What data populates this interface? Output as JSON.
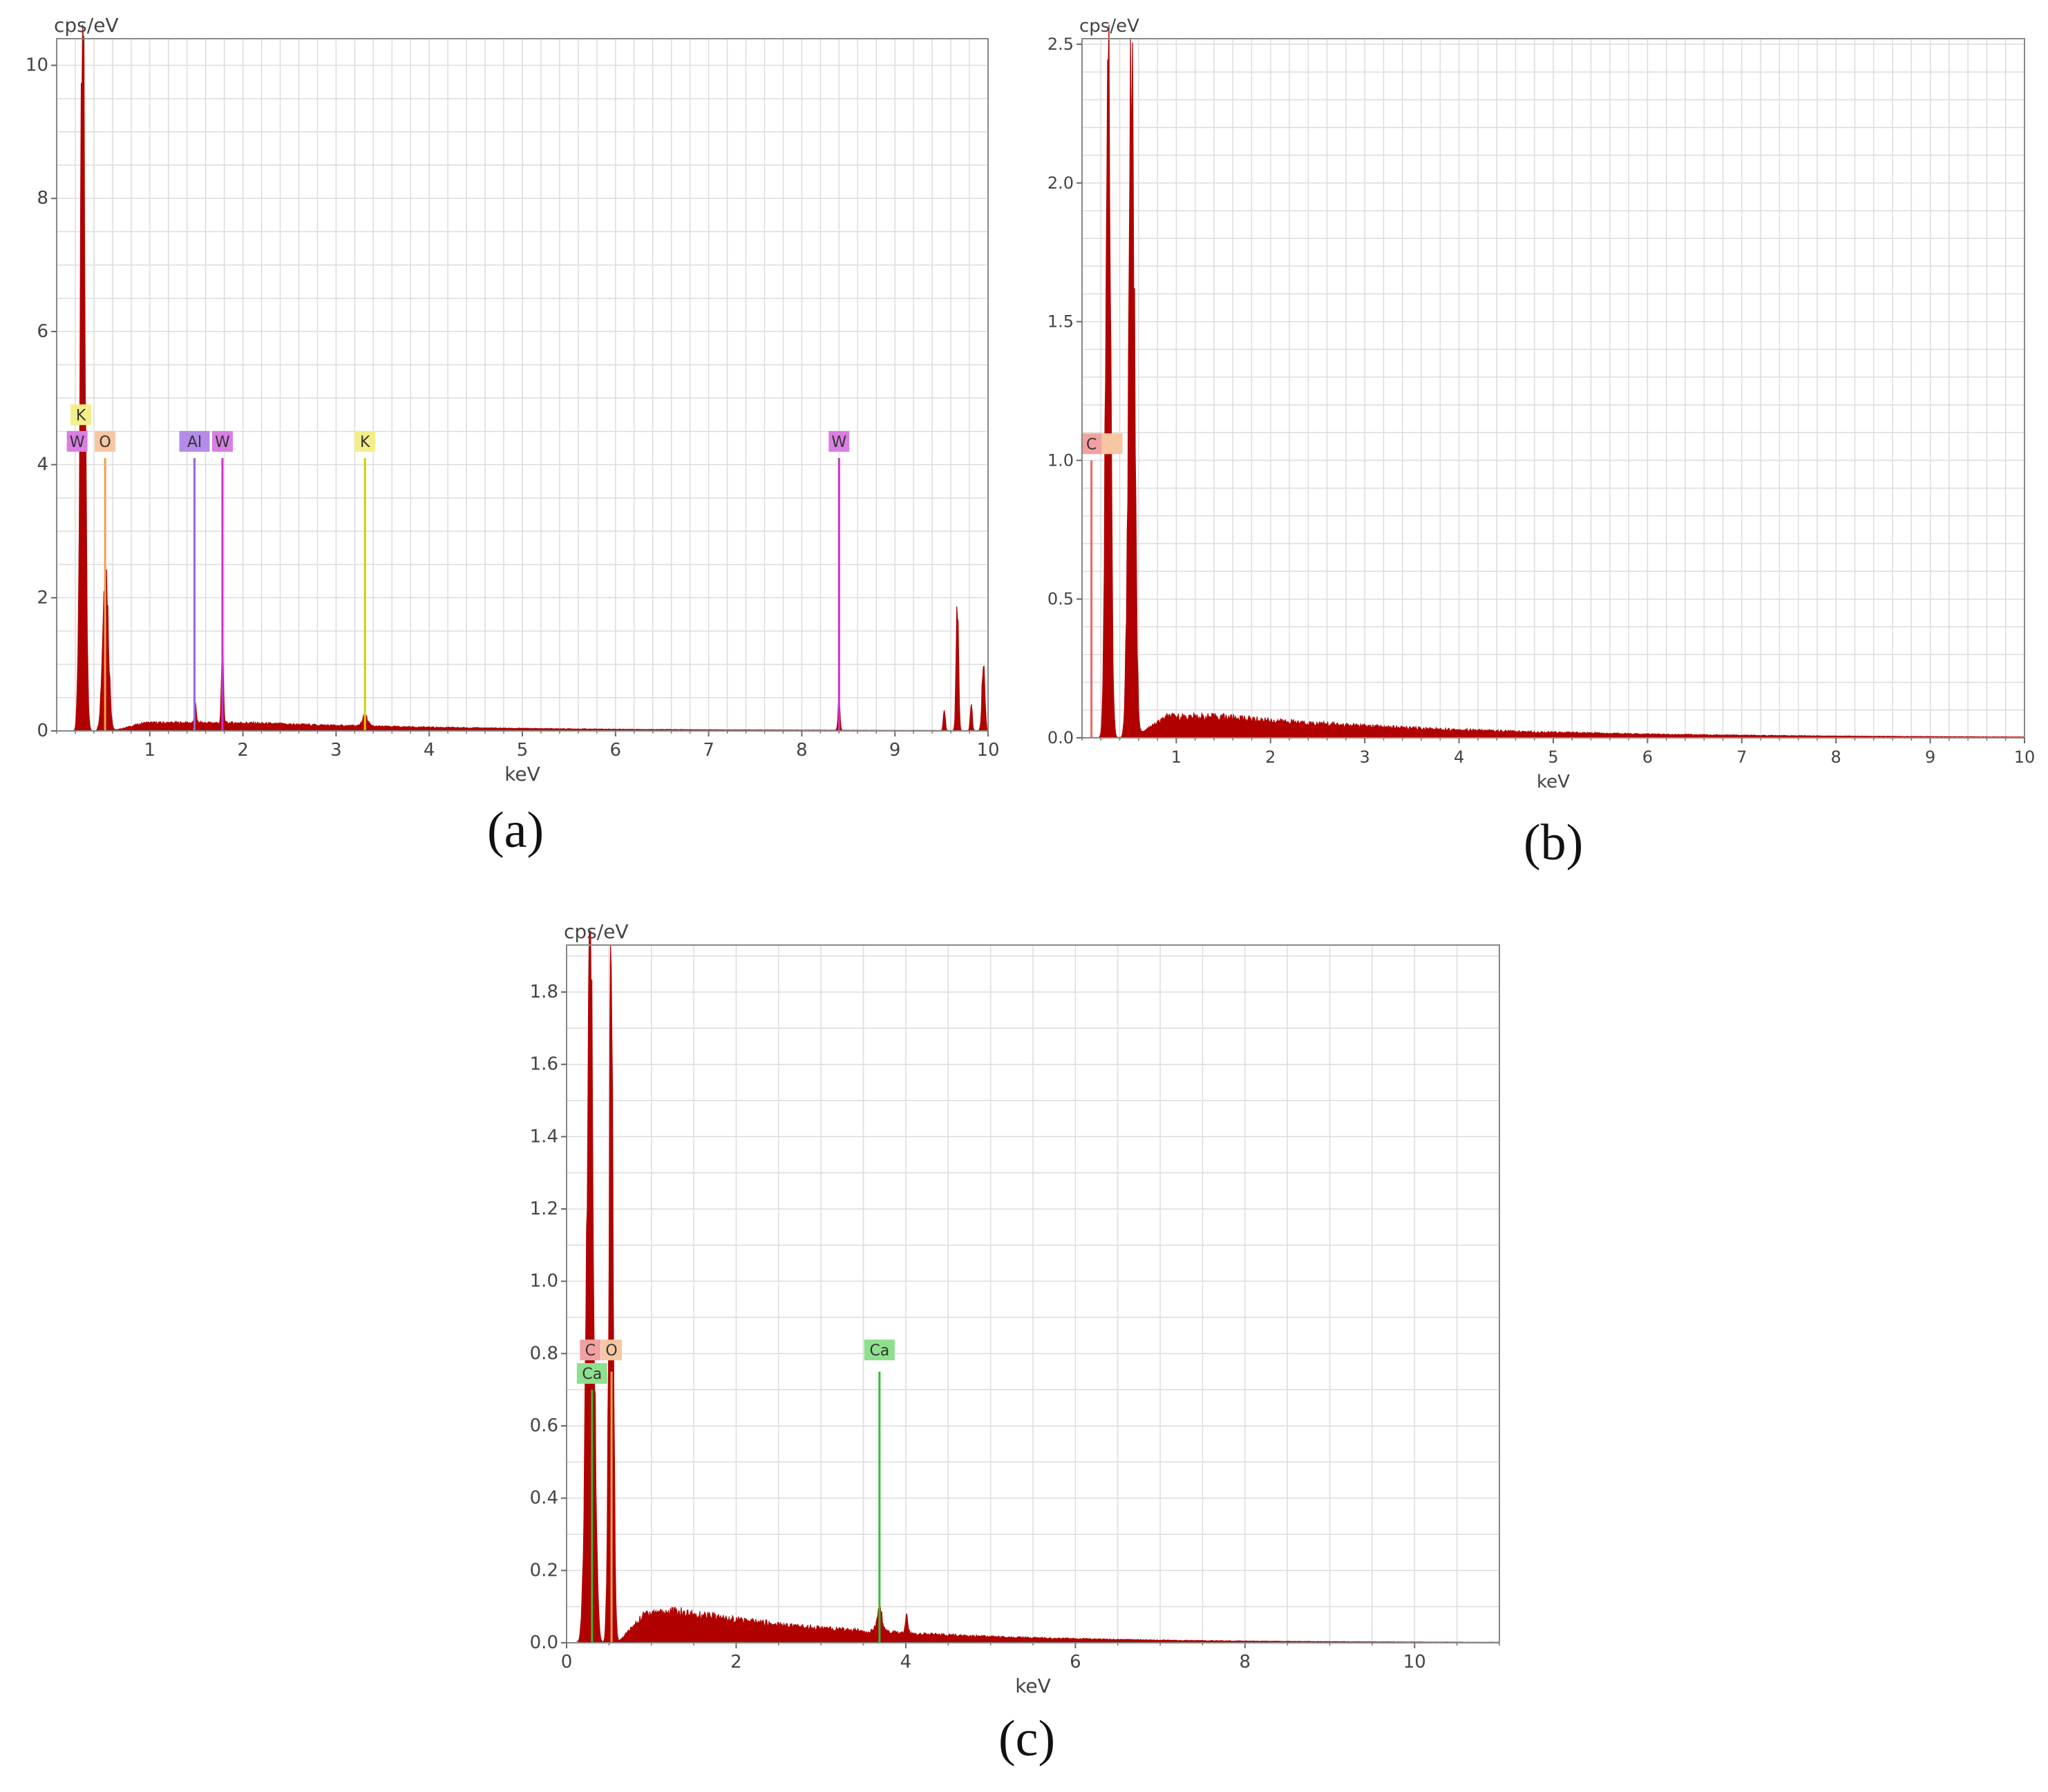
{
  "colors": {
    "spectrum": "#b10000",
    "grid": "#dcdcdc",
    "frame": "#888888",
    "label_W": "#d97ee3",
    "line_W": "#cc33cc",
    "label_Al": "#b48be8",
    "line_Al": "#9966dd",
    "label_K": "#f2ef8a",
    "line_K": "#d6cc00",
    "label_O": "#f6c7a2",
    "line_O": "#f0a050",
    "label_C": "#f3a0a0",
    "line_C": "#ee6666",
    "label_Ca": "#8de08d",
    "line_Ca": "#33bb33"
  },
  "chart_data": [
    {
      "id": "a",
      "type": "area",
      "caption": "(a)",
      "ylabel": "cps/eV",
      "xlabel": "keV",
      "xlim": [
        0,
        10
      ],
      "ylim": [
        0,
        10.4
      ],
      "xticks": [
        1,
        2,
        3,
        4,
        5,
        6,
        7,
        8,
        9,
        10
      ],
      "yticks": [
        0,
        2,
        4,
        6,
        8,
        10
      ],
      "xminor": 0.2,
      "yminor": 0.5,
      "grid": true,
      "peaks": [
        {
          "x": 0.28,
          "y": 10.3,
          "w": 0.025
        },
        {
          "x": 0.525,
          "y": 2.5,
          "w": 0.03
        },
        {
          "x": 1.49,
          "y": 0.3,
          "w": 0.01
        },
        {
          "x": 1.78,
          "y": 1.15,
          "w": 0.01
        },
        {
          "x": 3.31,
          "y": 0.15,
          "w": 0.03
        },
        {
          "x": 8.4,
          "y": 0.45,
          "w": 0.01
        },
        {
          "x": 9.67,
          "y": 2.05,
          "w": 0.012
        },
        {
          "x": 9.53,
          "y": 0.3,
          "w": 0.01
        },
        {
          "x": 9.95,
          "y": 0.95,
          "w": 0.015
        },
        {
          "x": 9.82,
          "y": 0.4,
          "w": 0.01
        }
      ],
      "background": {
        "amp": 0.12,
        "start": 0.6,
        "center": 2.0,
        "decay": 2.5
      },
      "element_labels": [
        {
          "text": "K",
          "x": 0.26,
          "y_label": 4.75,
          "line_top": null,
          "key": "K"
        },
        {
          "text": "W",
          "x": 0.22,
          "y_label": 4.35,
          "line_top": null,
          "key": "W"
        },
        {
          "text": "O",
          "x": 0.52,
          "y_label": 4.35,
          "line_top": 4.1,
          "key": "O"
        },
        {
          "text": "Al",
          "x": 1.48,
          "y_label": 4.35,
          "line_top": 4.1,
          "key": "Al"
        },
        {
          "text": "W",
          "x": 1.78,
          "y_label": 4.35,
          "line_top": 4.1,
          "key": "W"
        },
        {
          "text": "K",
          "x": 3.31,
          "y_label": 4.35,
          "line_top": 4.1,
          "key": "K"
        },
        {
          "text": "W",
          "x": 8.4,
          "y_label": 4.35,
          "line_top": 4.1,
          "key": "W"
        }
      ]
    },
    {
      "id": "b",
      "type": "area",
      "caption": "(b)",
      "ylabel": "cps/eV",
      "xlabel": "keV",
      "xlim": [
        0,
        10
      ],
      "ylim": [
        0,
        2.52
      ],
      "xticks": [
        1,
        2,
        3,
        4,
        5,
        6,
        7,
        8,
        9,
        10
      ],
      "yticks": [
        0.0,
        0.5,
        1.0,
        1.5,
        2.0,
        2.5
      ],
      "xminor": 0.2,
      "yminor": 0.1,
      "grid": true,
      "peaks": [
        {
          "x": 0.277,
          "y": 2.6,
          "w": 0.025
        },
        {
          "x": 0.525,
          "y": 2.45,
          "w": 0.03
        }
      ],
      "background": {
        "amp": 0.075,
        "start": 0.55,
        "center": 1.5,
        "decay": 2.6
      },
      "element_labels": [
        {
          "text": "C",
          "x": 0.1,
          "y_label": 1.06,
          "line_top": 1.0,
          "key": "C"
        },
        {
          "text": "",
          "x": 0.32,
          "y_label": 1.06,
          "line_top": null,
          "key": "O"
        }
      ]
    },
    {
      "id": "c",
      "type": "area",
      "caption": "(c)",
      "ylabel": "cps/eV",
      "xlabel": "keV",
      "xlim": [
        0,
        11
      ],
      "ylim": [
        0,
        1.93
      ],
      "xticks": [
        0,
        2,
        4,
        6,
        8,
        10
      ],
      "yticks": [
        0.0,
        0.2,
        0.4,
        0.6,
        0.8,
        1.0,
        1.2,
        1.4,
        1.6,
        1.8
      ],
      "xminor": 0.5,
      "yminor": 0.1,
      "grid": true,
      "peaks": [
        {
          "x": 0.277,
          "y": 2.0,
          "w": 0.04
        },
        {
          "x": 0.525,
          "y": 1.74,
          "w": 0.025
        },
        {
          "x": 3.69,
          "y": 0.065,
          "w": 0.03
        },
        {
          "x": 4.01,
          "y": 0.05,
          "w": 0.015
        }
      ],
      "background": {
        "amp": 0.085,
        "start": 0.6,
        "center": 1.3,
        "decay": 2.3
      },
      "element_labels": [
        {
          "text": "C",
          "x": 0.28,
          "y_label": 0.81,
          "line_top": null,
          "key": "C"
        },
        {
          "text": "O",
          "x": 0.53,
          "y_label": 0.81,
          "line_top": 0.75,
          "key": "O"
        },
        {
          "text": "Ca",
          "x": 0.3,
          "y_label": 0.745,
          "line_top": 0.7,
          "key": "Ca"
        },
        {
          "text": "Ca",
          "x": 3.69,
          "y_label": 0.81,
          "line_top": 0.75,
          "key": "Ca"
        }
      ]
    }
  ]
}
